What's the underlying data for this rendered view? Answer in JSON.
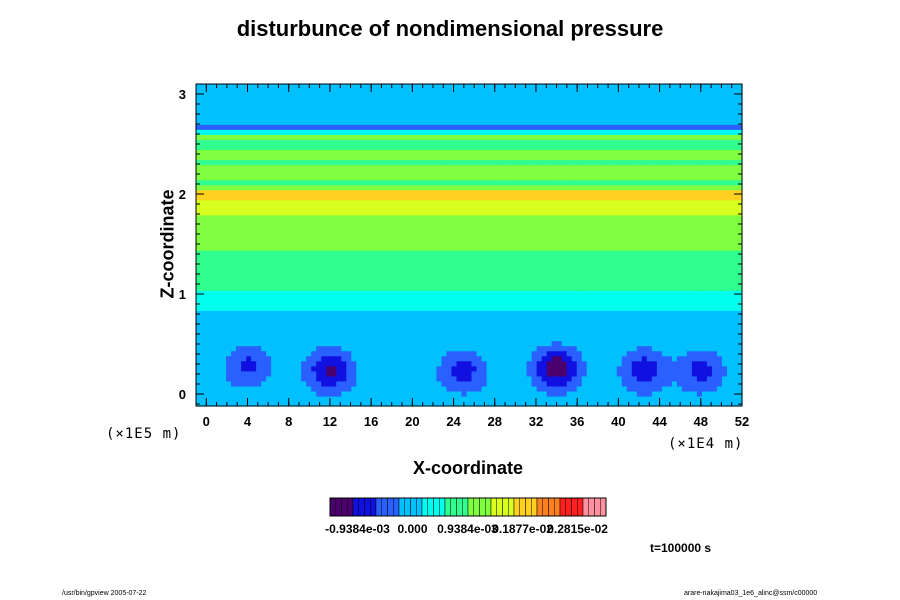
{
  "chart_data": {
    "type": "heatmap",
    "title": "disturbunce of nondimensional pressure",
    "xlabel": "X-coordinate",
    "ylabel": "Z-coordinate",
    "x_unit_label": "(×1E4 m)",
    "y_unit_label": "(×1E5 m)",
    "x_ticks": [
      "0",
      "4",
      "8",
      "12",
      "16",
      "20",
      "24",
      "28",
      "32",
      "36",
      "40",
      "44",
      "48",
      "52"
    ],
    "y_ticks": [
      "0",
      "1",
      "2",
      "3"
    ],
    "xlim": [
      -1,
      52
    ],
    "ylim": [
      -0.12,
      3.1
    ],
    "colorbar": {
      "labels": [
        "-0.9384e-03",
        "0.000",
        "0.9384e-03",
        "0.1877e-02",
        "0.2815e-02"
      ],
      "values": [
        -0.0009384,
        0.0,
        0.0009384,
        0.001877,
        0.002815
      ],
      "range": [
        -0.0014076,
        0.0033
      ],
      "colors": [
        "#4b006e",
        "#1010e0",
        "#2a60ff",
        "#00c0ff",
        "#00ffee",
        "#30ff90",
        "#80ff40",
        "#d8ff20",
        "#ffd020",
        "#ff8020",
        "#ff2020",
        "#ff90a0"
      ]
    },
    "background_value": 0.0,
    "horizontal_bands": [
      {
        "z": 0.6,
        "value": 0.00015,
        "width": 0.25
      },
      {
        "z": 1.1,
        "value": 0.0005,
        "width": 0.2
      },
      {
        "z": 1.5,
        "value": 0.00095,
        "width": 0.3
      },
      {
        "z": 1.85,
        "value": 0.0011,
        "width": 0.18
      },
      {
        "z": 2.0,
        "value": 0.0016,
        "width": 0.07
      },
      {
        "z": 2.2,
        "value": 0.001,
        "width": 0.1
      },
      {
        "z": 2.4,
        "value": 0.0011,
        "width": 0.12
      },
      {
        "z": 2.58,
        "value": 0.0009,
        "width": 0.05
      },
      {
        "z": 2.68,
        "value": -0.0003,
        "width": 0.06
      }
    ],
    "low_pressure_cells": [
      {
        "x": 4,
        "z": 0.3,
        "value": -0.00075
      },
      {
        "x": 12,
        "z": 0.25,
        "value": -0.0011
      },
      {
        "x": 20,
        "z": 0.2,
        "value": -0.0002
      },
      {
        "x": 25,
        "z": 0.25,
        "value": -0.0008
      },
      {
        "x": 34,
        "z": 0.27,
        "value": -0.0013
      },
      {
        "x": 42.5,
        "z": 0.25,
        "value": -0.0009
      },
      {
        "x": 48,
        "z": 0.25,
        "value": -0.0008
      }
    ],
    "annotations": {
      "time": "t=100000 s"
    }
  },
  "footer": {
    "left": "/usr/bin/gpview 2005-07-22",
    "right": "arare-nakajima03_1e6_alinc@ssm/c00000"
  }
}
